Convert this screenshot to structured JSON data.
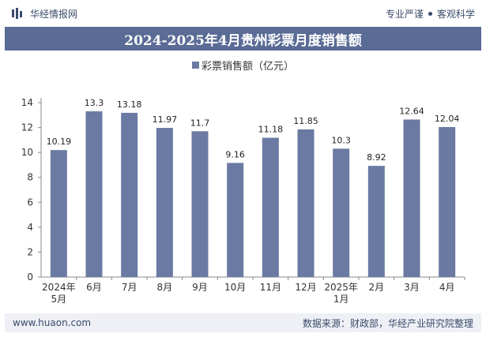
{
  "header": {
    "brand": "华经情报网",
    "tagline_left": "专业严谨",
    "tagline_right": "客观科学"
  },
  "footer": {
    "site": "www.huaon.com",
    "source": "数据来源：财政部，华经产业研究院整理"
  },
  "colors": {
    "bar": "#6a7aa2",
    "title_bg": "#5a6b95"
  },
  "chart_data": {
    "type": "bar",
    "title": "2024-2025年4月贵州彩票月度销售额",
    "categories": [
      "2024年5月",
      "6月",
      "7月",
      "8月",
      "9月",
      "10月",
      "11月",
      "12月",
      "2025年1月",
      "2月",
      "3月",
      "4月"
    ],
    "series": [
      {
        "name": "彩票销售额（亿元）",
        "values": [
          10.19,
          13.3,
          13.18,
          11.97,
          11.7,
          9.16,
          11.18,
          11.85,
          10.3,
          8.92,
          12.64,
          12.04
        ]
      }
    ],
    "ylim": [
      0,
      14
    ],
    "yticks": [
      0,
      2,
      4,
      6,
      8,
      10,
      12,
      14
    ],
    "legend_position": "top-center",
    "grid": false
  }
}
